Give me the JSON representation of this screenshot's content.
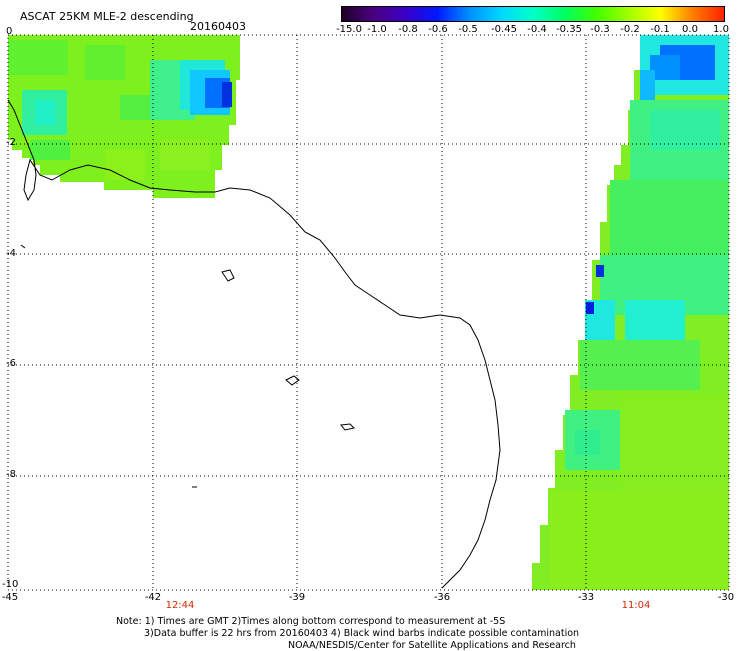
{
  "header": {
    "title": "ASCAT 25KM MLE-2 descending",
    "date": "20160403"
  },
  "colorbar": {
    "labels": [
      "-15.0",
      "-1.0",
      "-0.8",
      "-0.6",
      "-0.5",
      "-0.45",
      "-0.4",
      "-0.35",
      "-0.3",
      "-0.2",
      "-0.1",
      "0.0",
      "1.0"
    ],
    "colors": [
      "#200028",
      "#4b0080",
      "#3a00c8",
      "#0018ff",
      "#0090ff",
      "#00d8ff",
      "#00ffc8",
      "#00ff60",
      "#40ff00",
      "#a0ff00",
      "#ffff00",
      "#ff8000",
      "#ff2000"
    ]
  },
  "axes": {
    "y_labels": [
      "0",
      "-2",
      "-4",
      "-6",
      "-8",
      "-10"
    ],
    "x_labels": [
      "-45",
      "-42",
      "-39",
      "-36",
      "-33",
      "-30"
    ]
  },
  "times": [
    "12:44",
    "11:04"
  ],
  "notes": {
    "line1": "Note: 1) Times are GMT 2)Times along bottom correspond to measurement at -5S",
    "line2": "3)Data buffer is 22 hrs from 20160403 4) Black wind barbs indicate possible contamination",
    "line3": "NOAA/NESDIS/Center for Satellite Applications and Research"
  }
}
